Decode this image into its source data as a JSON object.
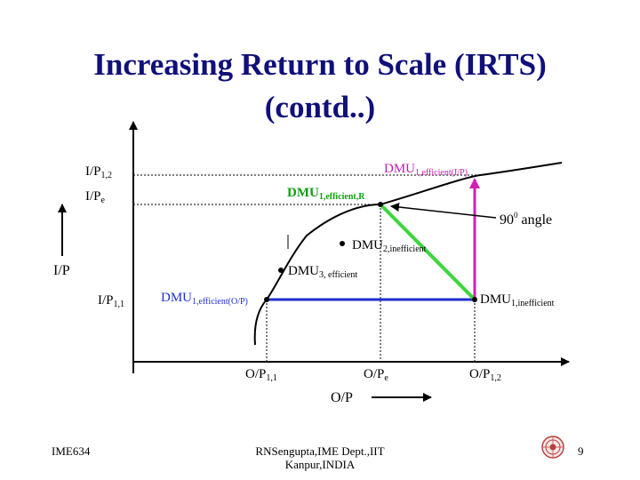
{
  "slide": {
    "title_line1": "Increasing Return to Scale (IRTS)",
    "title_line2": "(contd..)",
    "footer_left": "IME634",
    "footer_center_line1": "RNSengupta,IME Dept.,IIT",
    "footer_center_line2": "Kanpur,INDIA",
    "page_number": "9"
  },
  "diagram": {
    "y_axis_label": "I/P",
    "x_axis_label": "O/P",
    "y_ticks": [
      {
        "main": "I/P",
        "sub": "1,2"
      },
      {
        "main": "I/P",
        "sub": "e"
      },
      {
        "main": "I/P",
        "sub": "1,1"
      }
    ],
    "x_ticks": [
      {
        "main": "O/P",
        "sub": "1,1"
      },
      {
        "main": "O/P",
        "sub": "e"
      },
      {
        "main": "O/P",
        "sub": "1,2"
      }
    ],
    "points": {
      "dmu1_efficient_ip": {
        "main": "DMU",
        "sub": "1,efficient(I/P)"
      },
      "dmu1_efficient_r": {
        "main": "DMU",
        "sub": "1,efficient,R"
      },
      "dmu2_inefficient": {
        "main": "DMU",
        "sub": "2,inefficient"
      },
      "dmu3_efficient": {
        "main": "DMU",
        "sub": "3, efficient"
      },
      "dmu1_efficient_op": {
        "main": "DMU",
        "sub": "1,efficient(O/P)"
      },
      "dmu1_inefficient": {
        "main": "DMU",
        "sub": "1,inefficient"
      }
    },
    "angle_label": {
      "main": "90",
      "sup": "0",
      "rest": " angle"
    },
    "colors": {
      "frontier": "#000000",
      "horizontal_projection": "#1f2fd0",
      "vertical_projection": "#d21fb8",
      "diagonal_projection": "#3cd63c",
      "label_green": "#10a010",
      "label_magenta": "#c01ca8",
      "label_blue": "#1f2fd0",
      "title": "#10107a"
    }
  }
}
